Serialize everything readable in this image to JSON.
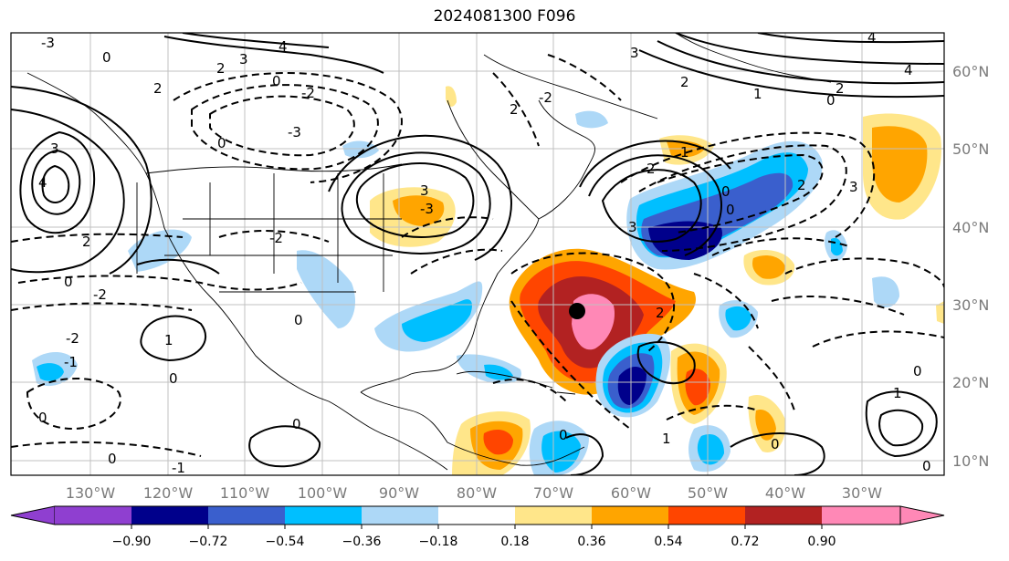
{
  "title": "2024081300 F096",
  "lon_labels": [
    "130°W",
    "120°W",
    "110°W",
    "100°W",
    "90°W",
    "80°W",
    "70°W",
    "60°W",
    "50°W",
    "40°W",
    "30°W"
  ],
  "lat_labels": [
    "60°N",
    "50°N",
    "40°N",
    "30°N",
    "20°N",
    "10°N"
  ],
  "colorbar": {
    "ticks": [
      "−0.90",
      "−0.72",
      "−0.54",
      "−0.36",
      "−0.18",
      "0.18",
      "0.36",
      "0.54",
      "0.72",
      "0.90"
    ],
    "colors": [
      "#8f3fd0",
      "#00008b",
      "#3a5fcd",
      "#00bfff",
      "#add8f7",
      "#ffffff",
      "#ffe68a",
      "#ffa500",
      "#ff4500",
      "#b22222",
      "#ff88b6"
    ]
  },
  "marker": "storm-center-dot"
}
